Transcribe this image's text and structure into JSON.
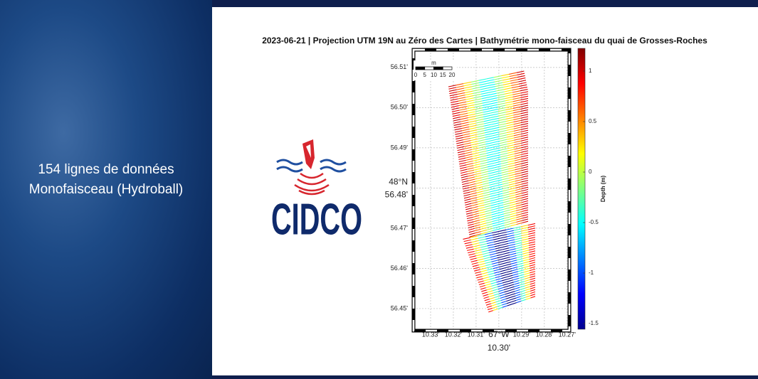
{
  "slide": {
    "text_lines": [
      "154 lignes de données",
      "Monofaisceau (Hydroball)"
    ],
    "logo_text": "CIDCO"
  },
  "chart_data": {
    "type": "map",
    "title": "2023-06-21 | Projection UTM 19N au Zéro des Cartes | Bathymétrie mono-faisceau du quai de Grosses-Roches",
    "xlim": [
      10.3375,
      10.269
    ],
    "xticks": [
      {
        "value": 10.33,
        "label": "10.33'"
      },
      {
        "value": 10.32,
        "label": "10.32'"
      },
      {
        "value": 10.31,
        "label": "10.31'"
      },
      {
        "value": 10.3,
        "label": "10.30'"
      },
      {
        "value": 10.29,
        "label": "10.29'"
      },
      {
        "value": 10.28,
        "label": "10.28'"
      },
      {
        "value": 10.27,
        "label": "10.27'"
      }
    ],
    "x_degree_label": "67°W",
    "ylim": [
      56.4445,
      56.5144
    ],
    "yticks": [
      {
        "value": 56.51,
        "label": "56.51'"
      },
      {
        "value": 56.5,
        "label": "56.50'"
      },
      {
        "value": 56.49,
        "label": "56.49'"
      },
      {
        "value": 56.48,
        "label": "56.48'"
      },
      {
        "value": 56.47,
        "label": "56.47'"
      },
      {
        "value": 56.46,
        "label": "56.46'"
      },
      {
        "value": 56.45,
        "label": "56.45'"
      }
    ],
    "y_degree_label": "48°N",
    "grid": true,
    "colorbar": {
      "label": "Depth (m)",
      "lim": [
        -1.556,
        1.225
      ],
      "ticks": [
        1,
        0.5,
        0,
        -0.5,
        -1,
        -1.5
      ]
    },
    "scale_bar": {
      "unit": "m",
      "ticks": [
        0,
        5,
        10,
        15,
        20
      ]
    }
  }
}
